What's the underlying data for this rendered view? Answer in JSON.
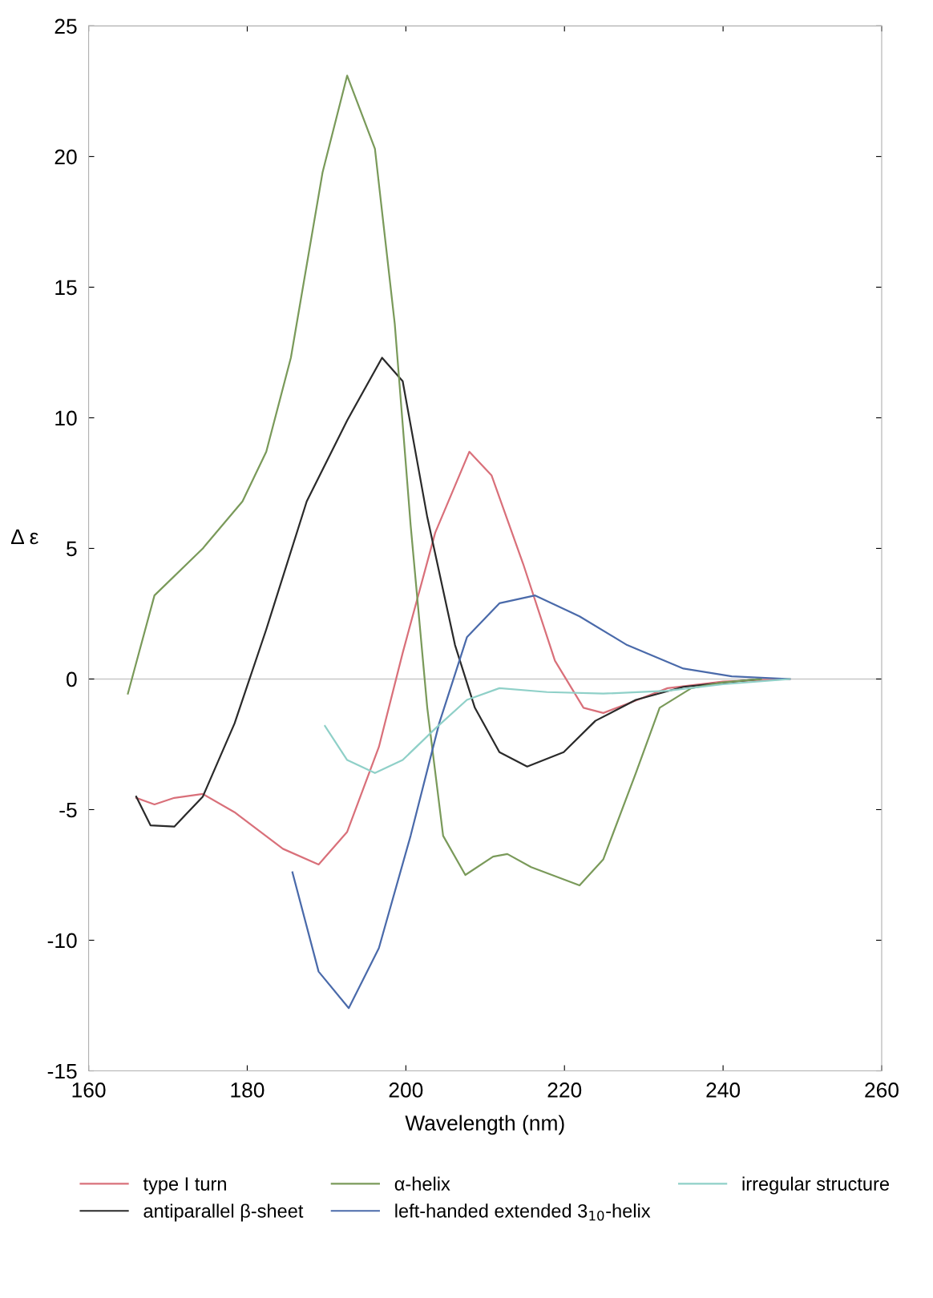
{
  "chart_data": {
    "type": "line",
    "xlabel": "Wavelength (nm)",
    "ylabel": "Δ ε",
    "xlim": [
      160,
      260
    ],
    "xticks": [
      160,
      180,
      200,
      220,
      240,
      260
    ],
    "ylim": [
      -15,
      25
    ],
    "yticks": [
      -15,
      -10,
      -5,
      0,
      5,
      10,
      15,
      20,
      25
    ],
    "grid": false,
    "legend": "bottom",
    "marker": "none",
    "line_style": "solid",
    "ref_lines": [
      {
        "axis": "y",
        "value": 0,
        "color": "#c8c8c8"
      }
    ],
    "series": [
      {
        "name": "type I turn",
        "color": "#d9707a",
        "x": [
          166,
          168.3,
          170.8,
          174.4,
          178.4,
          184.5,
          189,
          192.6,
          196.6,
          199.6,
          203.7,
          208,
          210.8,
          214.8,
          218.8,
          222.4,
          224.9,
          227.9,
          233,
          240,
          248.4
        ],
        "values": [
          -4.55,
          -4.8,
          -4.55,
          -4.4,
          -5.1,
          -6.5,
          -7.1,
          -5.85,
          -2.6,
          1.0,
          5.6,
          8.7,
          7.8,
          4.4,
          0.7,
          -1.1,
          -1.3,
          -0.95,
          -0.35,
          -0.1,
          0
        ]
      },
      {
        "name": "antiparallel β-sheet",
        "color": "#2a2a2a",
        "x": [
          166,
          167.8,
          170.8,
          174.4,
          178.4,
          182.4,
          187.5,
          192.6,
          197,
          199.6,
          202.7,
          206.2,
          208.7,
          211.8,
          215.3,
          219.9,
          223.9,
          229,
          235,
          244.6
        ],
        "values": [
          -4.5,
          -5.6,
          -5.65,
          -4.5,
          -1.7,
          1.9,
          6.8,
          9.9,
          12.3,
          11.4,
          6.2,
          1.3,
          -1.1,
          -2.8,
          -3.35,
          -2.8,
          -1.6,
          -0.8,
          -0.3,
          0
        ]
      },
      {
        "name": "α-helix",
        "color": "#7a9a5a",
        "x": [
          164.95,
          168.3,
          174.4,
          179.4,
          182.4,
          185.5,
          189.5,
          192.6,
          196.1,
          198.6,
          200.6,
          202.7,
          204.7,
          207.5,
          211,
          212.8,
          215.8,
          221.9,
          224.9,
          229,
          232,
          236,
          240,
          244.8
        ],
        "values": [
          -0.56,
          3.2,
          5.0,
          6.8,
          8.7,
          12.3,
          19.4,
          23.1,
          20.3,
          13.6,
          5.9,
          -1.1,
          -6.0,
          -7.5,
          -6.8,
          -6.7,
          -7.2,
          -7.9,
          -6.9,
          -3.6,
          -1.1,
          -0.35,
          -0.13,
          0
        ]
      },
      {
        "name": "left-handed extended 3$_{10}$-helix",
        "color": "#4a6aaa",
        "x": [
          185.7,
          189,
          192.8,
          196.6,
          200.6,
          204.2,
          207.7,
          211.8,
          216.3,
          221.9,
          227.9,
          235,
          241.1,
          248.4
        ],
        "values": [
          -7.4,
          -11.2,
          -12.6,
          -10.3,
          -6.0,
          -1.7,
          1.6,
          2.9,
          3.2,
          2.4,
          1.3,
          0.4,
          0.1,
          0
        ]
      },
      {
        "name": "irregular structure",
        "color": "#8fd0c8",
        "x": [
          189.8,
          192.6,
          196.1,
          199.6,
          203.7,
          207.7,
          211.8,
          217.8,
          224.9,
          233,
          240,
          248.4
        ],
        "values": [
          -1.8,
          -3.1,
          -3.6,
          -3.1,
          -1.9,
          -0.8,
          -0.35,
          -0.5,
          -0.56,
          -0.45,
          -0.2,
          0
        ]
      }
    ]
  }
}
